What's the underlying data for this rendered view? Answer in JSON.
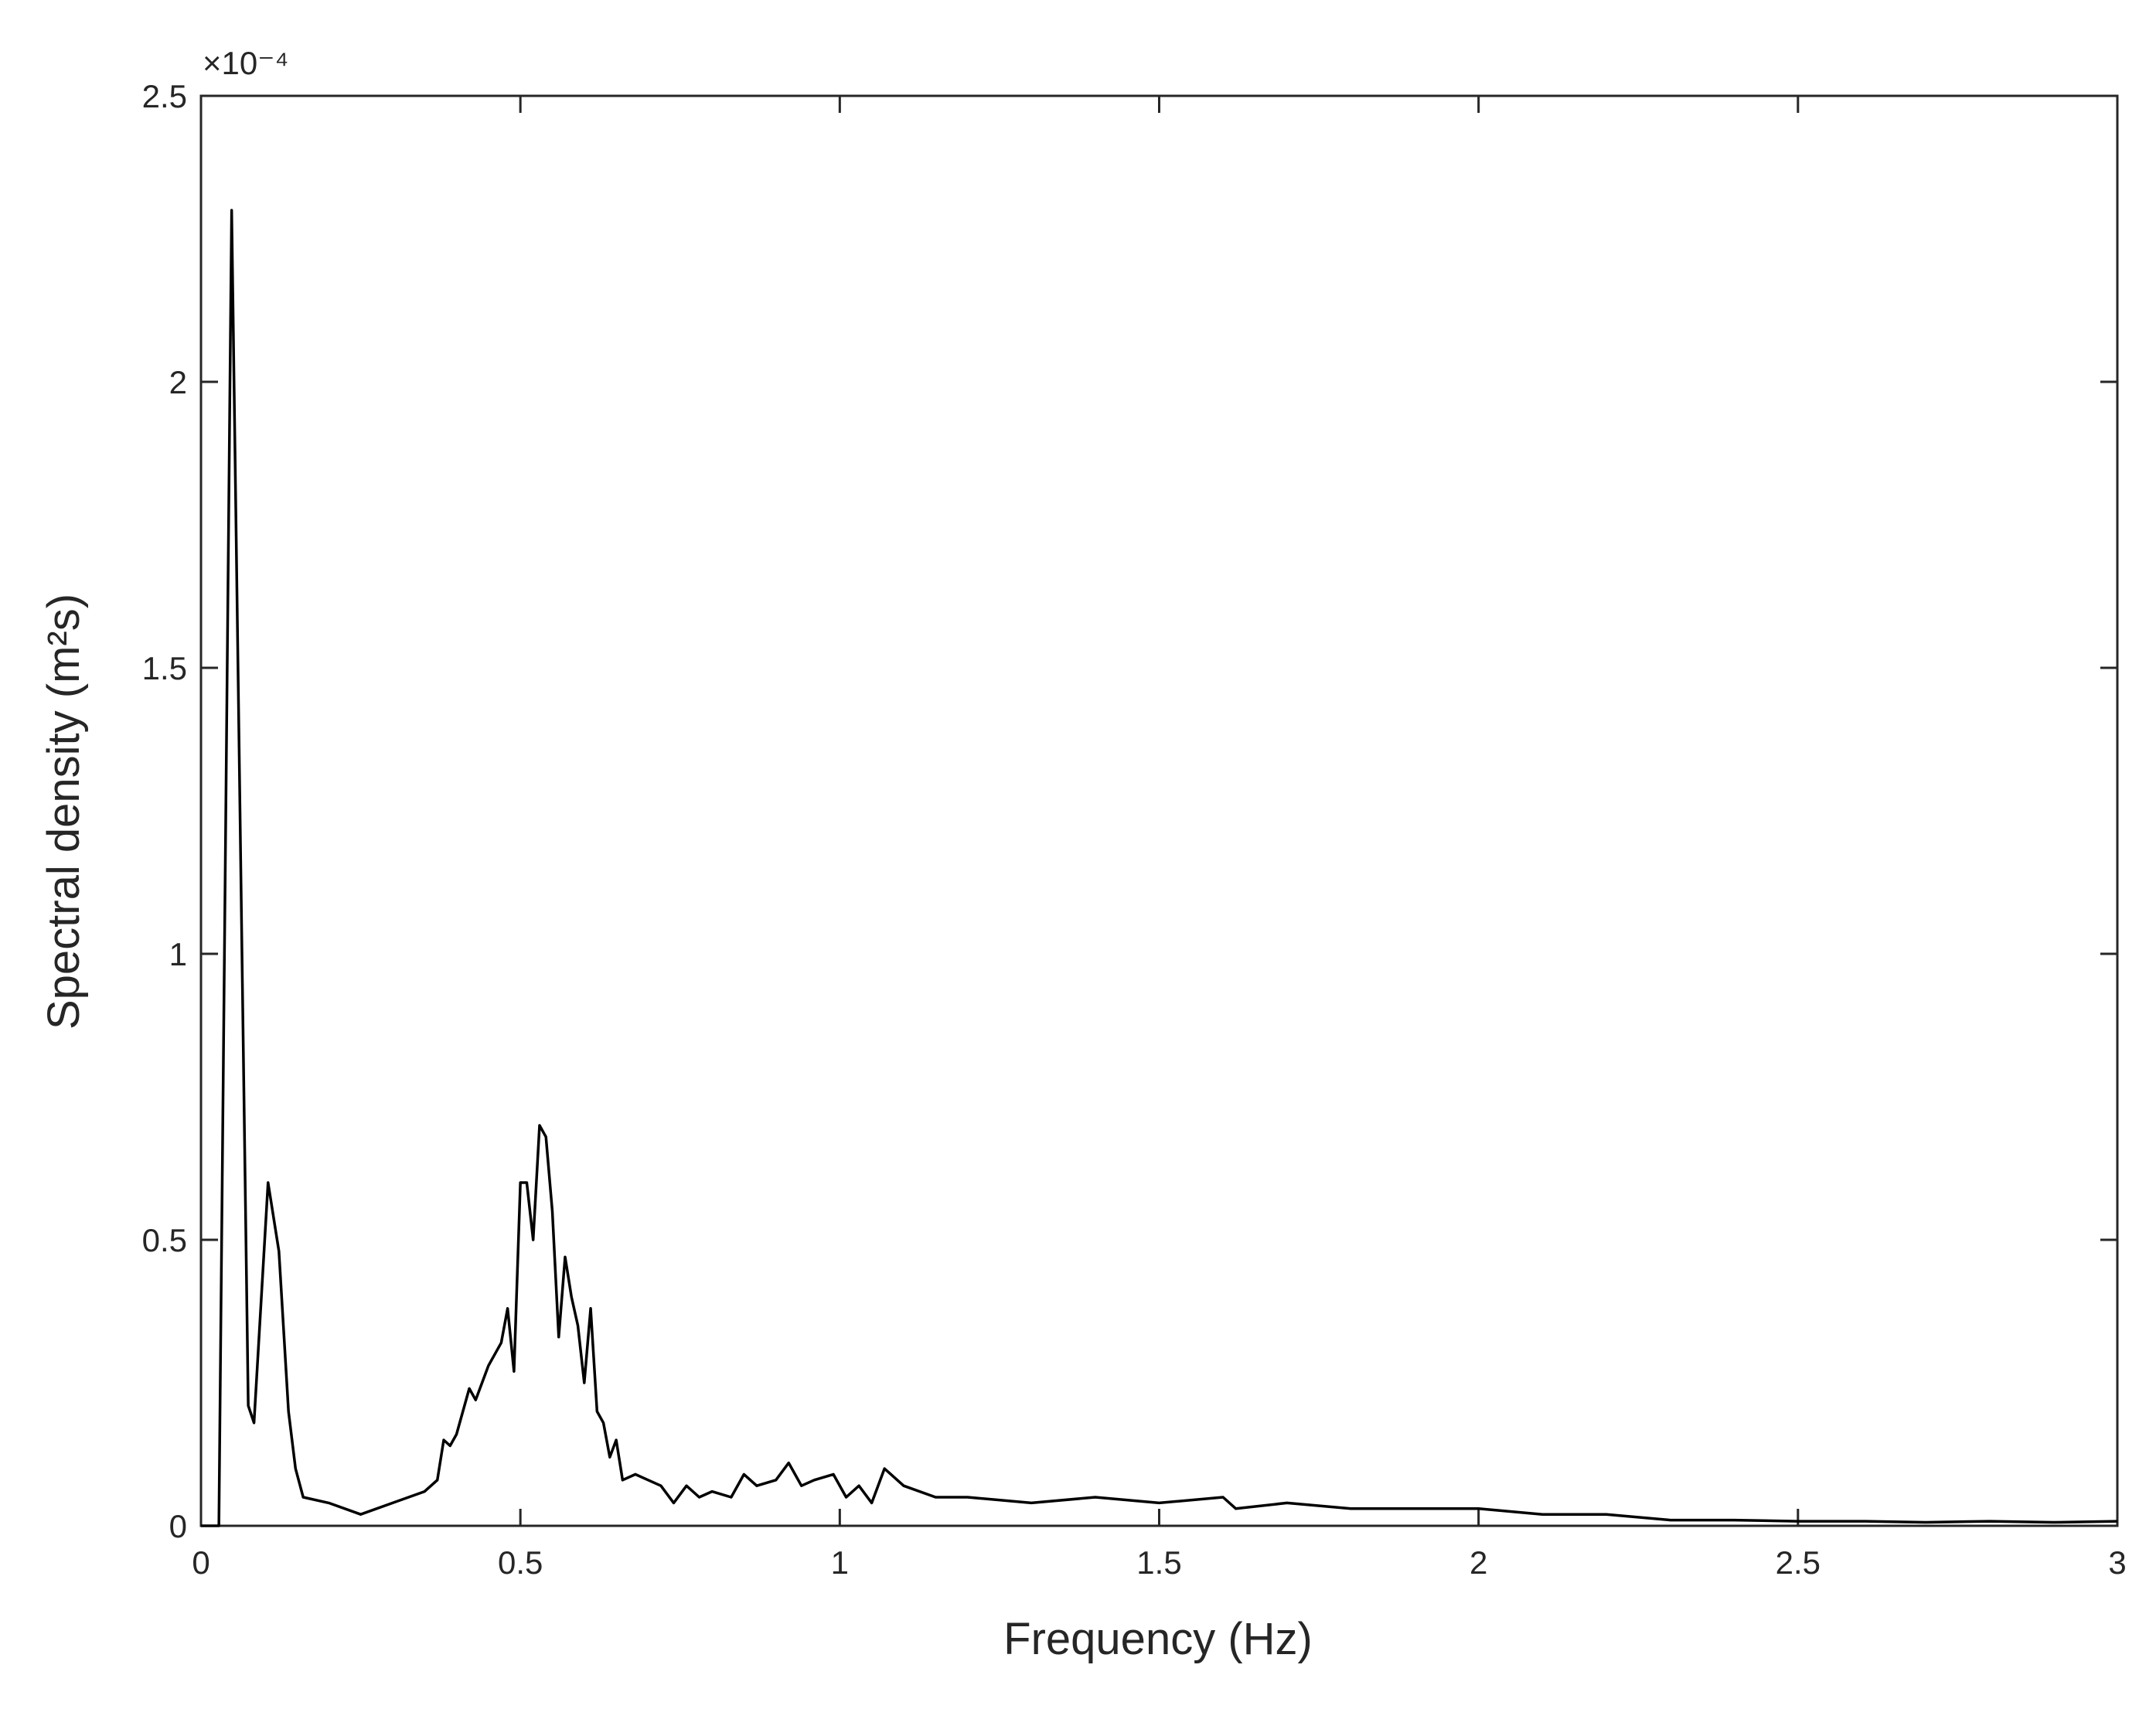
{
  "chart_data": {
    "type": "line",
    "x_label": "Frequency (Hz)",
    "y_label": "Spectral density (m²s)",
    "y_multiplier": "×10⁻⁴",
    "xlim": [
      0,
      3
    ],
    "ylim": [
      0,
      2.5
    ],
    "xticks": [
      0,
      0.5,
      1,
      1.5,
      2,
      2.5,
      3
    ],
    "yticks": [
      0,
      0.5,
      1,
      1.5,
      2,
      2.5
    ],
    "grid": false,
    "series": [
      {
        "color": "#000000",
        "x": [
          0,
          0.028,
          0.048,
          0.074,
          0.083,
          0.105,
          0.122,
          0.137,
          0.148,
          0.16,
          0.2,
          0.25,
          0.3,
          0.35,
          0.37,
          0.38,
          0.39,
          0.4,
          0.42,
          0.43,
          0.45,
          0.47,
          0.48,
          0.49,
          0.5,
          0.51,
          0.52,
          0.53,
          0.54,
          0.55,
          0.56,
          0.57,
          0.58,
          0.59,
          0.6,
          0.61,
          0.62,
          0.63,
          0.64,
          0.65,
          0.66,
          0.68,
          0.7,
          0.72,
          0.74,
          0.76,
          0.78,
          0.8,
          0.83,
          0.85,
          0.87,
          0.9,
          0.92,
          0.94,
          0.96,
          0.99,
          1.01,
          1.03,
          1.05,
          1.07,
          1.1,
          1.15,
          1.2,
          1.3,
          1.4,
          1.5,
          1.6,
          1.62,
          1.7,
          1.8,
          1.9,
          2.0,
          2.1,
          2.2,
          2.3,
          2.4,
          2.5,
          2.6,
          2.7,
          2.8,
          2.9,
          3.0
        ],
        "values": [
          0,
          0,
          2.3,
          0.21,
          0.18,
          0.6,
          0.48,
          0.2,
          0.1,
          0.05,
          0.04,
          0.02,
          0.04,
          0.06,
          0.08,
          0.15,
          0.14,
          0.16,
          0.24,
          0.22,
          0.28,
          0.32,
          0.38,
          0.27,
          0.6,
          0.6,
          0.5,
          0.7,
          0.68,
          0.55,
          0.33,
          0.47,
          0.4,
          0.35,
          0.25,
          0.38,
          0.2,
          0.18,
          0.12,
          0.15,
          0.08,
          0.09,
          0.08,
          0.07,
          0.04,
          0.07,
          0.05,
          0.06,
          0.05,
          0.09,
          0.07,
          0.08,
          0.11,
          0.07,
          0.08,
          0.09,
          0.05,
          0.07,
          0.04,
          0.1,
          0.07,
          0.05,
          0.05,
          0.04,
          0.05,
          0.04,
          0.05,
          0.03,
          0.04,
          0.03,
          0.03,
          0.03,
          0.02,
          0.02,
          0.01,
          0.01,
          0.008,
          0.008,
          0.006,
          0.008,
          0.006,
          0.008
        ]
      }
    ]
  }
}
